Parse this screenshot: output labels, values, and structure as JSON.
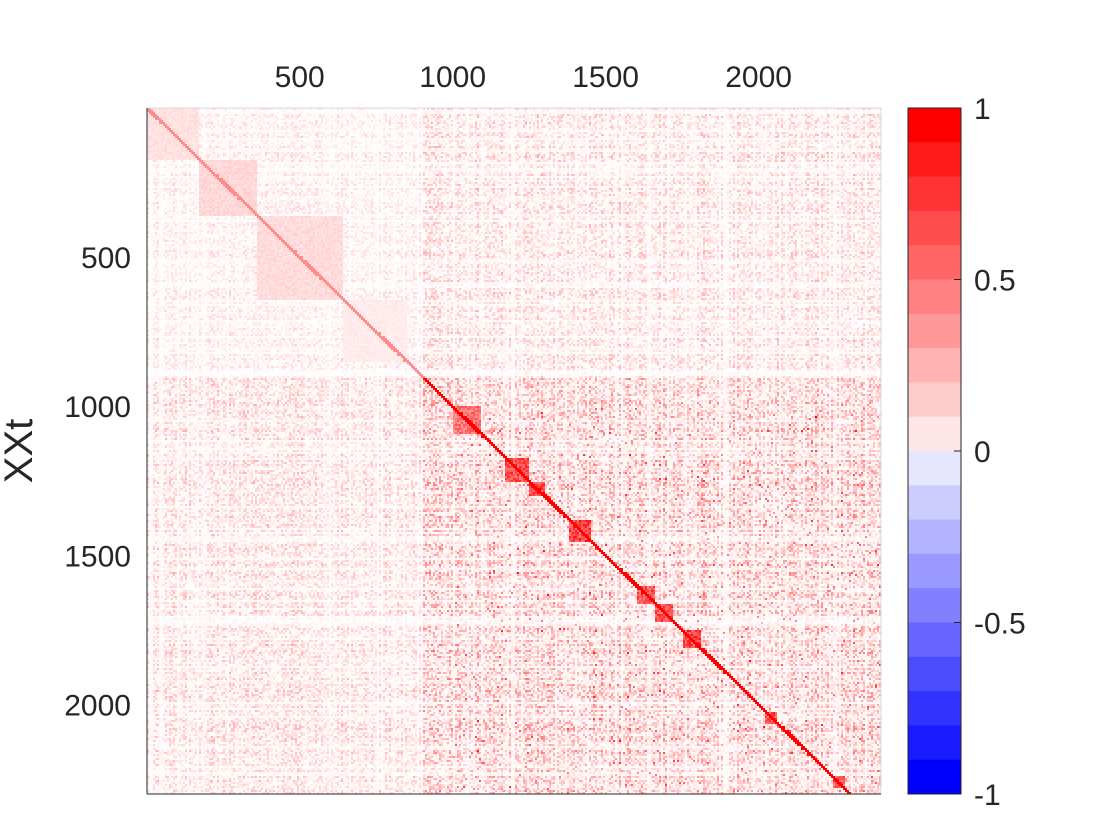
{
  "chart_data": {
    "type": "heatmap",
    "title": "",
    "xlabel": "",
    "ylabel": "XXt",
    "x_axis_location": "top",
    "x_ticks": [
      500,
      1000,
      1500,
      2000
    ],
    "y_ticks": [
      500,
      1000,
      1500,
      2000
    ],
    "xlim": [
      1,
      2400
    ],
    "ylim": [
      1,
      2300
    ],
    "matrix_size": [
      2300,
      2400
    ],
    "diagonal_value": 1,
    "colorbar": {
      "location": "right",
      "ticks": [
        1,
        0.5,
        0,
        -0.5,
        -1
      ],
      "tick_labels": [
        "1",
        "0.5",
        "0",
        "-0.5",
        "-1"
      ],
      "clim": [
        -1,
        1
      ],
      "levels": 20,
      "negative_color": "#0000ff",
      "zero_color": "#ffffff",
      "positive_color": "#ff0000"
    },
    "blocks": [
      {
        "start": 1,
        "end": 170,
        "strength": 0.15
      },
      {
        "start": 170,
        "end": 360,
        "strength": 0.2
      },
      {
        "start": 360,
        "end": 640,
        "strength": 0.18
      },
      {
        "start": 640,
        "end": 850,
        "strength": 0.1
      },
      {
        "start": 1000,
        "end": 1090,
        "strength": 0.7
      },
      {
        "start": 1170,
        "end": 1250,
        "strength": 0.9
      },
      {
        "start": 1250,
        "end": 1300,
        "strength": 0.95
      },
      {
        "start": 1380,
        "end": 1450,
        "strength": 0.95
      },
      {
        "start": 1600,
        "end": 1660,
        "strength": 0.85
      },
      {
        "start": 1660,
        "end": 1720,
        "strength": 0.9
      },
      {
        "start": 1750,
        "end": 1810,
        "strength": 0.95
      },
      {
        "start": 2020,
        "end": 2060,
        "strength": 0.9
      },
      {
        "start": 2240,
        "end": 2280,
        "strength": 0.85
      }
    ]
  }
}
